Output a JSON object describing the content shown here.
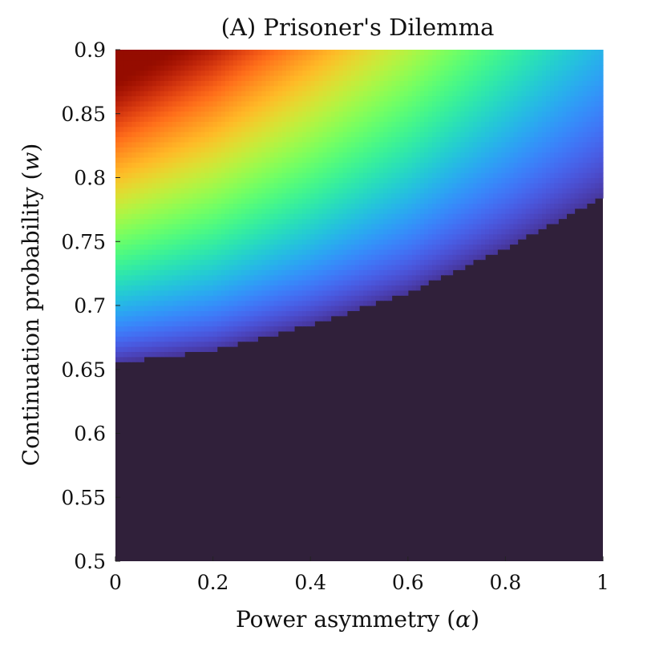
{
  "chart_data": {
    "type": "heatmap",
    "title": "(A) Prisoner's Dilemma",
    "xlabel": {
      "prefix": "Power asymmetry (",
      "symbol": "α",
      "suffix": ")"
    },
    "ylabel": {
      "prefix": "Continuation probability (",
      "symbol": "w",
      "suffix": ")"
    },
    "xlim": [
      0,
      1
    ],
    "ylim": [
      0.5,
      0.9
    ],
    "x_ticks": [
      {
        "value": 0,
        "label": "0"
      },
      {
        "value": 0.2,
        "label": "0.2"
      },
      {
        "value": 0.4,
        "label": "0.4"
      },
      {
        "value": 0.6,
        "label": "0.6"
      },
      {
        "value": 0.8,
        "label": "0.8"
      },
      {
        "value": 1,
        "label": "1"
      }
    ],
    "y_ticks": [
      {
        "value": 0.5,
        "label": "0.5"
      },
      {
        "value": 0.55,
        "label": "0.55"
      },
      {
        "value": 0.6,
        "label": "0.6"
      },
      {
        "value": 0.65,
        "label": "0.65"
      },
      {
        "value": 0.7,
        "label": "0.7"
      },
      {
        "value": 0.75,
        "label": "0.75"
      },
      {
        "value": 0.8,
        "label": "0.8"
      },
      {
        "value": 0.85,
        "label": "0.85"
      },
      {
        "value": 0.9,
        "label": "0.9"
      }
    ],
    "colormap": "turbo",
    "background_color": "#30203a",
    "boundary": [
      {
        "alpha": 0.0,
        "w": 0.655
      },
      {
        "alpha": 0.2,
        "w": 0.665
      },
      {
        "alpha": 0.4,
        "w": 0.685
      },
      {
        "alpha": 0.6,
        "w": 0.71
      },
      {
        "alpha": 0.8,
        "w": 0.745
      },
      {
        "alpha": 1.0,
        "w": 0.785
      }
    ],
    "value_range": [
      0,
      1
    ]
  }
}
